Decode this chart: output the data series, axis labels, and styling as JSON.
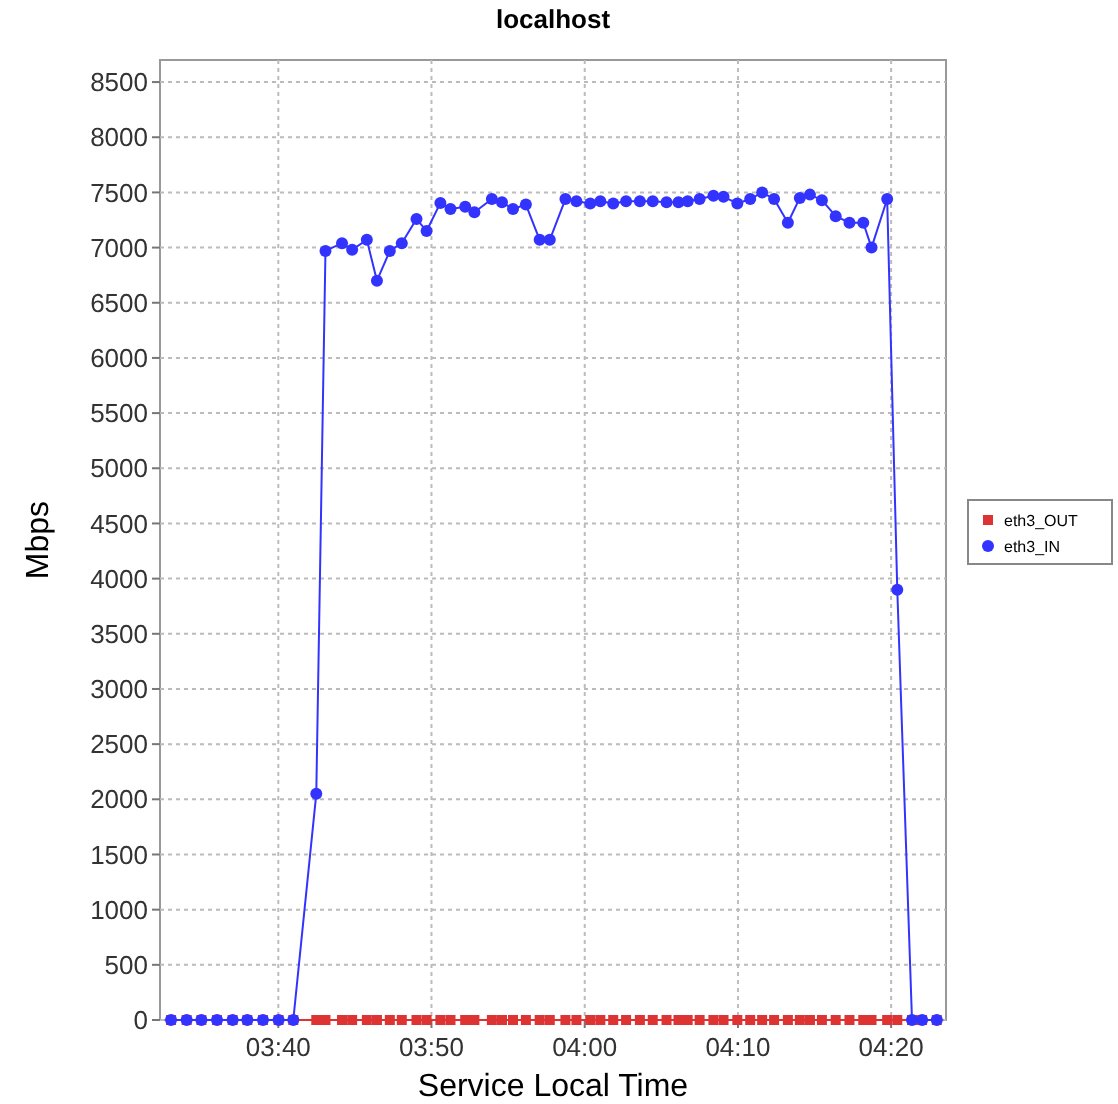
{
  "chart_data": {
    "type": "line",
    "title": "localhost",
    "xlabel": "Service Local Time",
    "ylabel": "Mbps",
    "x": [
      3.55,
      3.567,
      3.583,
      3.6,
      3.617,
      3.633,
      3.65,
      3.667,
      3.683,
      3.708,
      3.718,
      3.736,
      3.747,
      3.763,
      3.774,
      3.788,
      3.801,
      3.817,
      3.828,
      3.843,
      3.854,
      3.87,
      3.88,
      3.899,
      3.91,
      3.922,
      3.936,
      3.951,
      3.962,
      3.979,
      3.991,
      4.006,
      4.017,
      4.031,
      4.045,
      4.06,
      4.074,
      4.089,
      4.102,
      4.112,
      4.125,
      4.14,
      4.151,
      4.166,
      4.18,
      4.193,
      4.206,
      4.221,
      4.234,
      4.245,
      4.258,
      4.273,
      4.288,
      4.303,
      4.312,
      4.329,
      4.34,
      4.356,
      4.367,
      4.383
    ],
    "series": [
      {
        "name": "eth3_IN",
        "color": "#3333ff",
        "marker": "circle",
        "values": [
          0,
          0,
          0,
          0,
          0,
          0,
          0,
          0,
          0,
          2050,
          6970,
          7040,
          6980,
          7070,
          6700,
          6970,
          7040,
          7260,
          7150,
          7405,
          7350,
          7370,
          7320,
          7440,
          7410,
          7350,
          7390,
          7070,
          7070,
          7440,
          7420,
          7400,
          7420,
          7400,
          7420,
          7420,
          7420,
          7410,
          7410,
          7420,
          7440,
          7470,
          7460,
          7400,
          7440,
          7500,
          7440,
          7225,
          7450,
          7480,
          7430,
          7285,
          7225,
          7225,
          7000,
          7440,
          3900,
          0,
          0,
          0
        ]
      },
      {
        "name": "eth3_OUT",
        "color": "#dd3333",
        "marker": "square",
        "values": [
          0,
          0,
          0,
          0,
          0,
          0,
          0,
          0,
          0,
          0,
          0,
          0,
          0,
          0,
          0,
          0,
          0,
          0,
          0,
          0,
          0,
          0,
          0,
          0,
          0,
          0,
          0,
          0,
          0,
          0,
          0,
          0,
          0,
          0,
          0,
          0,
          0,
          0,
          0,
          0,
          0,
          0,
          0,
          0,
          0,
          0,
          0,
          0,
          0,
          0,
          0,
          0,
          0,
          0,
          0,
          0,
          0,
          0,
          0,
          0
        ]
      }
    ],
    "xlim": [
      3.538,
      4.393
    ],
    "xticks": [
      {
        "value": 3.6667,
        "label": "03:40"
      },
      {
        "value": 3.8333,
        "label": "03:50"
      },
      {
        "value": 4,
        "label": "04:00"
      },
      {
        "value": 4.1667,
        "label": "04:10"
      },
      {
        "value": 4.3333,
        "label": "04:20"
      }
    ],
    "ylim": [
      0,
      8700
    ],
    "yticks": [
      0,
      500,
      1000,
      1500,
      2000,
      2500,
      3000,
      3500,
      4000,
      4500,
      5000,
      5500,
      6000,
      6500,
      7000,
      7500,
      8000,
      8500
    ],
    "grid": true,
    "legend": "right",
    "line_style": "solid"
  }
}
